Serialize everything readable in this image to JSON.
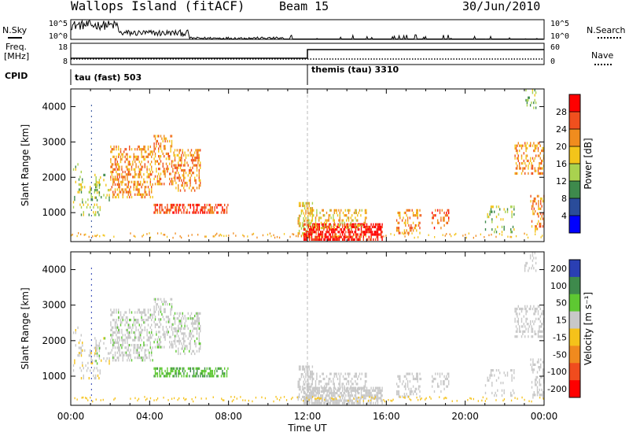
{
  "header": {
    "title": "Wallops Island (fitACF)",
    "beam": "Beam 15",
    "date": "30/Jun/2010"
  },
  "top_panels": {
    "nsky_label": "N.Sky",
    "nsearch_label": "N.Search",
    "freq_label_1": "Freq.",
    "freq_label_2": "[MHz]",
    "nave_label": "Nave",
    "cpid_label": "CPID",
    "left_ticks_1": [
      "10^5",
      "10^0"
    ],
    "right_ticks_1": [
      "10^5",
      "10^0"
    ],
    "left_ticks_2": [
      "18",
      "8"
    ],
    "right_ticks_2": [
      "60",
      "0"
    ],
    "cpid_1": "tau (fast) 503",
    "cpid_2": "themis (tau) 3310"
  },
  "colors": {
    "power": [
      "#0000ff",
      "#2a4c9a",
      "#3e8a4c",
      "#a9d24f",
      "#f3c41a",
      "#f08c1e",
      "#f0501e",
      "#ff0000"
    ],
    "velocity": [
      "#2a3fb4",
      "#3e8a4c",
      "#5ec832",
      "#c8c8c8",
      "#f5c21a",
      "#f08a1e",
      "#f04c1e",
      "#ff0000"
    ]
  },
  "chart_data": [
    {
      "type": "heatmap",
      "ylabel": "Slant Range [km]",
      "xlabel": "",
      "y_ticks": [
        "1000",
        "2000",
        "3000",
        "4000"
      ],
      "ylim": [
        180,
        4500
      ],
      "colorbar_label": "Power [dB]",
      "colorbar_ticks": [
        "4",
        "8",
        "12",
        "16",
        "20",
        "24",
        "28"
      ],
      "x_ticks": []
    },
    {
      "type": "heatmap",
      "ylabel": "Slant Range [km]",
      "xlabel": "Time UT",
      "y_ticks": [
        "1000",
        "2000",
        "3000",
        "4000"
      ],
      "ylim": [
        180,
        4500
      ],
      "colorbar_label": "Velocity [m s⁻¹]",
      "colorbar_ticks": [
        "200",
        "100",
        "50",
        "15",
        "-15",
        "-50",
        "-100",
        "-200"
      ],
      "x_ticks": [
        "00:00",
        "04:00",
        "08:00",
        "12:00",
        "16:00",
        "20:00",
        "00:00"
      ]
    }
  ]
}
